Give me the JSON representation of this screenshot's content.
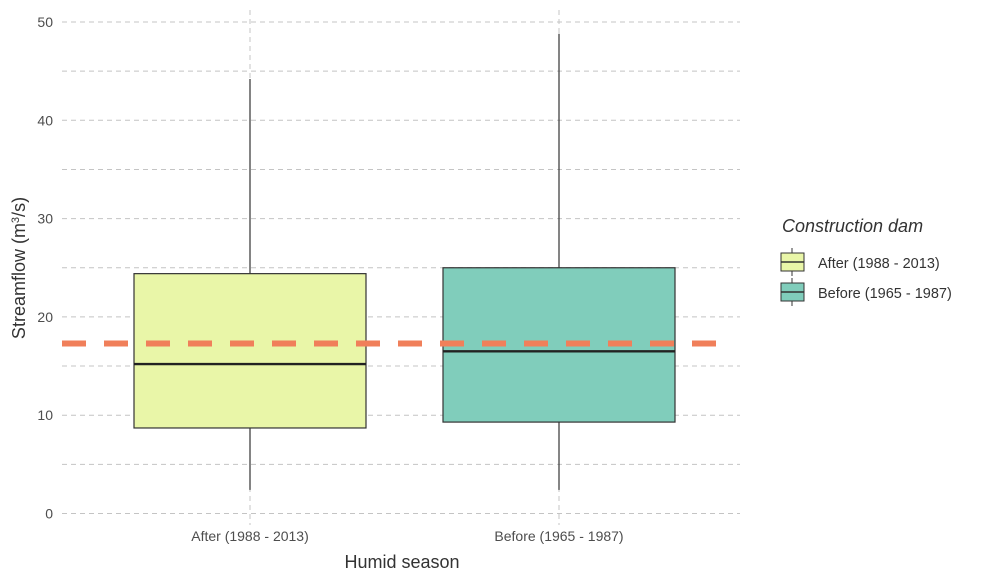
{
  "chart_data": {
    "type": "boxplot",
    "xlabel": "Humid season",
    "ylabel_main": "Streamflow (m",
    "ylabel_sup": "3",
    "ylabel_tail": "/s)",
    "ylim": [
      0,
      50
    ],
    "yticks": [
      "0",
      "10",
      "20",
      "30",
      "40",
      "50"
    ],
    "grid": true,
    "categories": [
      "After (1988 - 2013)",
      "Before (1965 - 1987)"
    ],
    "boxes": [
      {
        "category": "After (1988 - 2013)",
        "min": 2.4,
        "q1": 8.7,
        "median": 15.2,
        "q3": 24.4,
        "max": 44.2,
        "fill": "#e9f6a8"
      },
      {
        "category": "Before (1965 - 1987)",
        "min": 2.4,
        "q1": 9.3,
        "median": 16.5,
        "q3": 25.0,
        "max": 48.8,
        "fill": "#80cdbb"
      }
    ],
    "reference_line": {
      "value": 17.3,
      "color": "#f07f5a",
      "style": "dashed"
    },
    "legend": {
      "title": "Construction dam",
      "position": "right",
      "entries": [
        {
          "label": "After (1988 - 2013)",
          "fill": "#e9f6a8"
        },
        {
          "label": "Before (1965 - 1987)",
          "fill": "#80cdbb"
        }
      ]
    }
  }
}
